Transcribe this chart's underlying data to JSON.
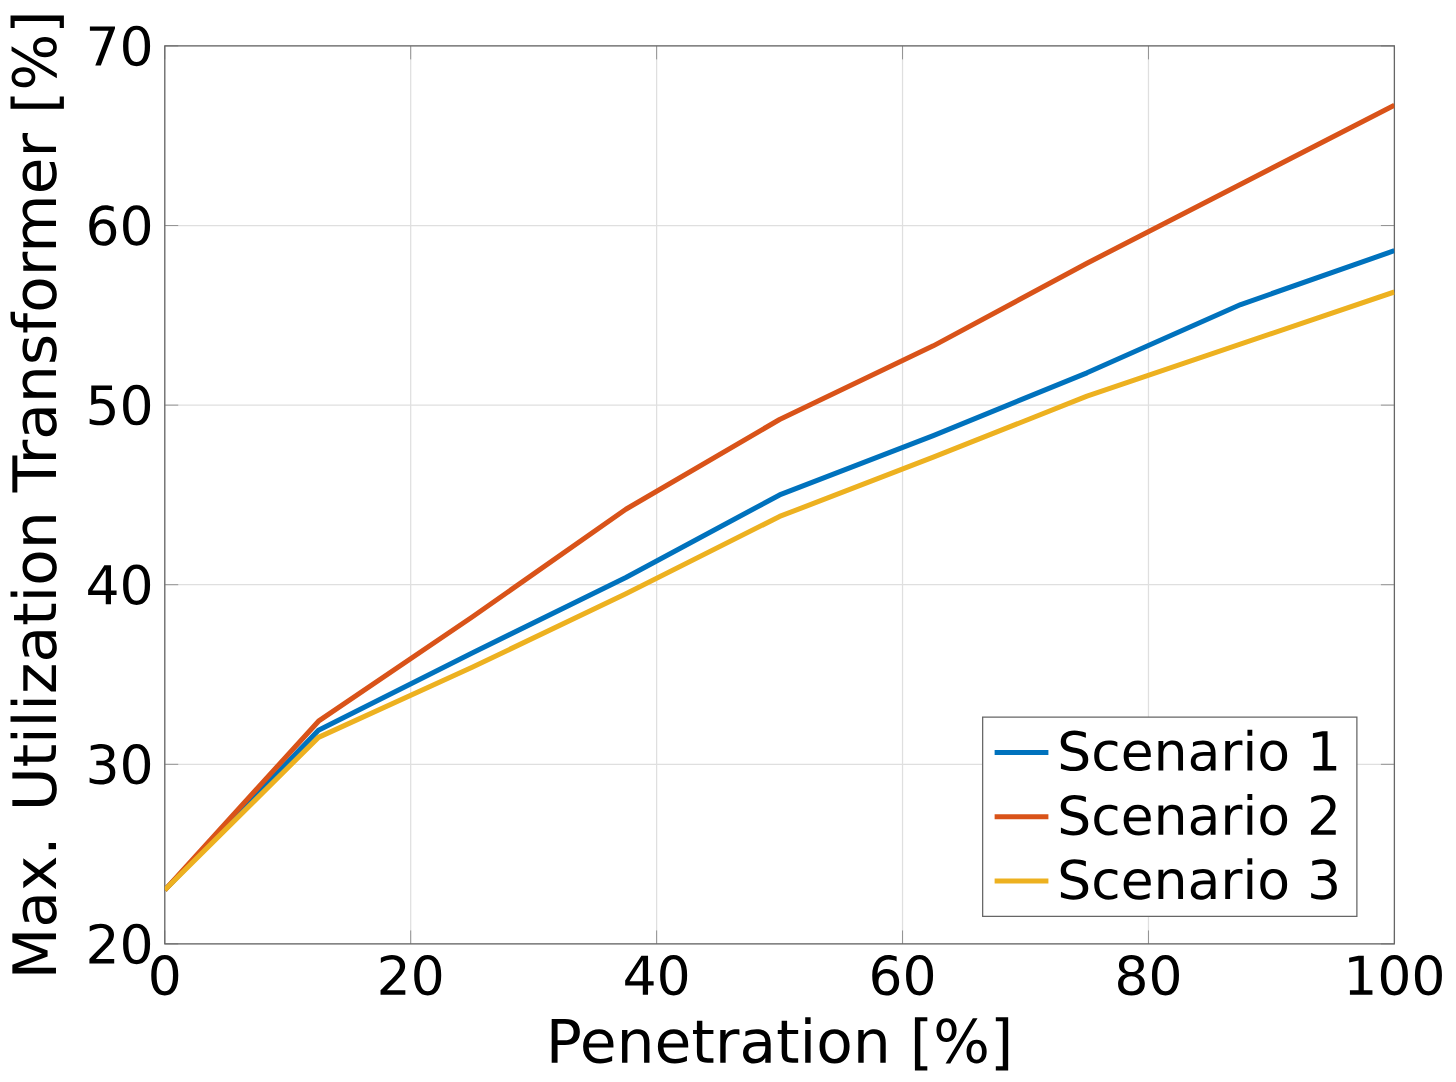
{
  "chart_data": {
    "type": "line",
    "xlabel": "Penetration [%]",
    "ylabel": "Max. Utilization Transformer [%]",
    "x": [
      0,
      12.5,
      25,
      37.5,
      50,
      62.5,
      75,
      87.5,
      100
    ],
    "series": [
      {
        "name": "Scenario 1",
        "color": "#0072bd",
        "values": [
          23,
          31.9,
          36.2,
          40.4,
          45.0,
          48.3,
          51.8,
          55.6,
          58.6
        ]
      },
      {
        "name": "Scenario 2",
        "color": "#d95319",
        "values": [
          23,
          32.4,
          38.2,
          44.2,
          49.2,
          53.3,
          57.9,
          62.3,
          66.7
        ]
      },
      {
        "name": "Scenario 3",
        "color": "#edb120",
        "values": [
          23,
          31.5,
          35.4,
          39.5,
          43.8,
          47.1,
          50.5,
          53.4,
          56.3
        ]
      }
    ],
    "xlim": [
      0,
      100
    ],
    "xticks": [
      0,
      20,
      40,
      60,
      80,
      100
    ],
    "ylim": [
      20,
      70
    ],
    "yticks": [
      20,
      30,
      40,
      50,
      60,
      70
    ],
    "grid": true,
    "legend": "bottom right",
    "line_style": "solid"
  }
}
